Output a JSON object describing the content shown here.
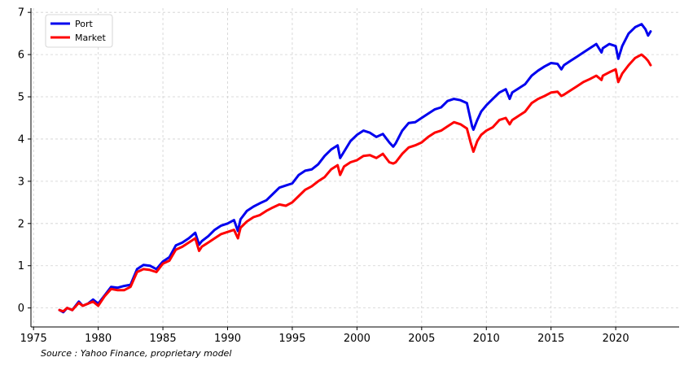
{
  "chart_data": {
    "type": "line",
    "title": "",
    "xlabel": "",
    "ylabel": "",
    "xlim": [
      1974.8,
      2024.9
    ],
    "ylim": [
      -0.45,
      7.1
    ],
    "x_ticks": [
      1975,
      1980,
      1985,
      1990,
      1995,
      2000,
      2005,
      2010,
      2015,
      2020
    ],
    "y_ticks": [
      0,
      1,
      2,
      3,
      4,
      5,
      6,
      7
    ],
    "grid": true,
    "legend_position": "top-left",
    "series": [
      {
        "name": "Port",
        "color": "#0000ee",
        "points": [
          [
            1977.0,
            -0.05
          ],
          [
            1977.3,
            -0.1
          ],
          [
            1977.6,
            0.0
          ],
          [
            1978.0,
            -0.05
          ],
          [
            1978.5,
            0.15
          ],
          [
            1978.8,
            0.05
          ],
          [
            1979.2,
            0.1
          ],
          [
            1979.6,
            0.2
          ],
          [
            1980.0,
            0.1
          ],
          [
            1980.5,
            0.3
          ],
          [
            1981.0,
            0.5
          ],
          [
            1981.5,
            0.48
          ],
          [
            1982.0,
            0.52
          ],
          [
            1982.5,
            0.55
          ],
          [
            1983.0,
            0.92
          ],
          [
            1983.5,
            1.02
          ],
          [
            1984.0,
            1.0
          ],
          [
            1984.5,
            0.92
          ],
          [
            1985.0,
            1.1
          ],
          [
            1985.5,
            1.2
          ],
          [
            1986.0,
            1.48
          ],
          [
            1986.5,
            1.55
          ],
          [
            1987.0,
            1.65
          ],
          [
            1987.5,
            1.78
          ],
          [
            1987.8,
            1.5
          ],
          [
            1988.0,
            1.58
          ],
          [
            1988.5,
            1.7
          ],
          [
            1989.0,
            1.85
          ],
          [
            1989.5,
            1.95
          ],
          [
            1990.0,
            2.0
          ],
          [
            1990.5,
            2.08
          ],
          [
            1990.8,
            1.82
          ],
          [
            1991.0,
            2.1
          ],
          [
            1991.5,
            2.3
          ],
          [
            1992.0,
            2.4
          ],
          [
            1992.5,
            2.48
          ],
          [
            1993.0,
            2.55
          ],
          [
            1993.5,
            2.7
          ],
          [
            1994.0,
            2.85
          ],
          [
            1994.5,
            2.9
          ],
          [
            1995.0,
            2.95
          ],
          [
            1995.5,
            3.15
          ],
          [
            1996.0,
            3.25
          ],
          [
            1996.5,
            3.28
          ],
          [
            1997.0,
            3.4
          ],
          [
            1997.5,
            3.6
          ],
          [
            1998.0,
            3.75
          ],
          [
            1998.5,
            3.85
          ],
          [
            1998.7,
            3.55
          ],
          [
            1999.0,
            3.7
          ],
          [
            1999.5,
            3.95
          ],
          [
            2000.0,
            4.1
          ],
          [
            2000.5,
            4.2
          ],
          [
            2001.0,
            4.15
          ],
          [
            2001.5,
            4.05
          ],
          [
            2002.0,
            4.12
          ],
          [
            2002.5,
            3.92
          ],
          [
            2002.8,
            3.82
          ],
          [
            2003.0,
            3.9
          ],
          [
            2003.5,
            4.2
          ],
          [
            2004.0,
            4.38
          ],
          [
            2004.5,
            4.4
          ],
          [
            2005.0,
            4.5
          ],
          [
            2005.5,
            4.6
          ],
          [
            2006.0,
            4.7
          ],
          [
            2006.5,
            4.75
          ],
          [
            2007.0,
            4.9
          ],
          [
            2007.5,
            4.95
          ],
          [
            2008.0,
            4.92
          ],
          [
            2008.5,
            4.85
          ],
          [
            2008.9,
            4.3
          ],
          [
            2009.0,
            4.22
          ],
          [
            2009.3,
            4.45
          ],
          [
            2009.6,
            4.65
          ],
          [
            2010.0,
            4.8
          ],
          [
            2010.5,
            4.95
          ],
          [
            2011.0,
            5.1
          ],
          [
            2011.5,
            5.18
          ],
          [
            2011.8,
            4.95
          ],
          [
            2012.0,
            5.1
          ],
          [
            2012.5,
            5.2
          ],
          [
            2013.0,
            5.3
          ],
          [
            2013.5,
            5.5
          ],
          [
            2014.0,
            5.62
          ],
          [
            2014.5,
            5.72
          ],
          [
            2015.0,
            5.8
          ],
          [
            2015.5,
            5.78
          ],
          [
            2015.8,
            5.65
          ],
          [
            2016.0,
            5.75
          ],
          [
            2016.5,
            5.85
          ],
          [
            2017.0,
            5.95
          ],
          [
            2017.5,
            6.05
          ],
          [
            2018.0,
            6.15
          ],
          [
            2018.5,
            6.25
          ],
          [
            2018.9,
            6.05
          ],
          [
            2019.0,
            6.15
          ],
          [
            2019.5,
            6.25
          ],
          [
            2020.0,
            6.2
          ],
          [
            2020.2,
            5.9
          ],
          [
            2020.5,
            6.2
          ],
          [
            2021.0,
            6.5
          ],
          [
            2021.5,
            6.65
          ],
          [
            2022.0,
            6.72
          ],
          [
            2022.3,
            6.6
          ],
          [
            2022.5,
            6.45
          ],
          [
            2022.7,
            6.55
          ]
        ]
      },
      {
        "name": "Market",
        "color": "#ff0000",
        "points": [
          [
            1977.0,
            -0.05
          ],
          [
            1977.3,
            -0.08
          ],
          [
            1977.6,
            0.0
          ],
          [
            1978.0,
            -0.05
          ],
          [
            1978.5,
            0.12
          ],
          [
            1978.8,
            0.05
          ],
          [
            1979.2,
            0.1
          ],
          [
            1979.6,
            0.15
          ],
          [
            1980.0,
            0.05
          ],
          [
            1980.5,
            0.28
          ],
          [
            1981.0,
            0.45
          ],
          [
            1981.5,
            0.42
          ],
          [
            1982.0,
            0.42
          ],
          [
            1982.5,
            0.5
          ],
          [
            1983.0,
            0.85
          ],
          [
            1983.5,
            0.92
          ],
          [
            1984.0,
            0.9
          ],
          [
            1984.5,
            0.85
          ],
          [
            1985.0,
            1.05
          ],
          [
            1985.5,
            1.12
          ],
          [
            1986.0,
            1.38
          ],
          [
            1986.5,
            1.45
          ],
          [
            1987.0,
            1.55
          ],
          [
            1987.5,
            1.65
          ],
          [
            1987.8,
            1.35
          ],
          [
            1988.0,
            1.45
          ],
          [
            1988.5,
            1.55
          ],
          [
            1989.0,
            1.65
          ],
          [
            1989.5,
            1.75
          ],
          [
            1990.0,
            1.8
          ],
          [
            1990.5,
            1.85
          ],
          [
            1990.8,
            1.65
          ],
          [
            1991.0,
            1.9
          ],
          [
            1991.5,
            2.05
          ],
          [
            1992.0,
            2.15
          ],
          [
            1992.5,
            2.2
          ],
          [
            1993.0,
            2.3
          ],
          [
            1993.5,
            2.38
          ],
          [
            1994.0,
            2.45
          ],
          [
            1994.5,
            2.42
          ],
          [
            1995.0,
            2.5
          ],
          [
            1995.5,
            2.65
          ],
          [
            1996.0,
            2.8
          ],
          [
            1996.5,
            2.88
          ],
          [
            1997.0,
            3.0
          ],
          [
            1997.5,
            3.1
          ],
          [
            1998.0,
            3.28
          ],
          [
            1998.5,
            3.38
          ],
          [
            1998.7,
            3.15
          ],
          [
            1999.0,
            3.35
          ],
          [
            1999.5,
            3.45
          ],
          [
            2000.0,
            3.5
          ],
          [
            2000.5,
            3.6
          ],
          [
            2001.0,
            3.62
          ],
          [
            2001.5,
            3.55
          ],
          [
            2002.0,
            3.65
          ],
          [
            2002.5,
            3.45
          ],
          [
            2002.8,
            3.42
          ],
          [
            2003.0,
            3.45
          ],
          [
            2003.5,
            3.65
          ],
          [
            2004.0,
            3.8
          ],
          [
            2004.5,
            3.85
          ],
          [
            2005.0,
            3.92
          ],
          [
            2005.5,
            4.05
          ],
          [
            2006.0,
            4.15
          ],
          [
            2006.5,
            4.2
          ],
          [
            2007.0,
            4.3
          ],
          [
            2007.5,
            4.4
          ],
          [
            2008.0,
            4.35
          ],
          [
            2008.5,
            4.25
          ],
          [
            2008.8,
            3.9
          ],
          [
            2009.0,
            3.7
          ],
          [
            2009.3,
            3.95
          ],
          [
            2009.6,
            4.1
          ],
          [
            2010.0,
            4.2
          ],
          [
            2010.5,
            4.28
          ],
          [
            2011.0,
            4.45
          ],
          [
            2011.5,
            4.5
          ],
          [
            2011.8,
            4.35
          ],
          [
            2012.0,
            4.45
          ],
          [
            2012.5,
            4.55
          ],
          [
            2013.0,
            4.65
          ],
          [
            2013.5,
            4.85
          ],
          [
            2014.0,
            4.95
          ],
          [
            2014.5,
            5.02
          ],
          [
            2015.0,
            5.1
          ],
          [
            2015.5,
            5.12
          ],
          [
            2015.8,
            5.02
          ],
          [
            2016.0,
            5.05
          ],
          [
            2016.5,
            5.15
          ],
          [
            2017.0,
            5.25
          ],
          [
            2017.5,
            5.35
          ],
          [
            2018.0,
            5.42
          ],
          [
            2018.5,
            5.5
          ],
          [
            2018.9,
            5.4
          ],
          [
            2019.0,
            5.5
          ],
          [
            2019.5,
            5.58
          ],
          [
            2020.0,
            5.65
          ],
          [
            2020.2,
            5.35
          ],
          [
            2020.5,
            5.55
          ],
          [
            2021.0,
            5.75
          ],
          [
            2021.5,
            5.92
          ],
          [
            2022.0,
            6.0
          ],
          [
            2022.3,
            5.92
          ],
          [
            2022.5,
            5.85
          ],
          [
            2022.7,
            5.75
          ]
        ]
      }
    ]
  },
  "footer": {
    "source": "Source : Yahoo Finance, proprietary model"
  }
}
